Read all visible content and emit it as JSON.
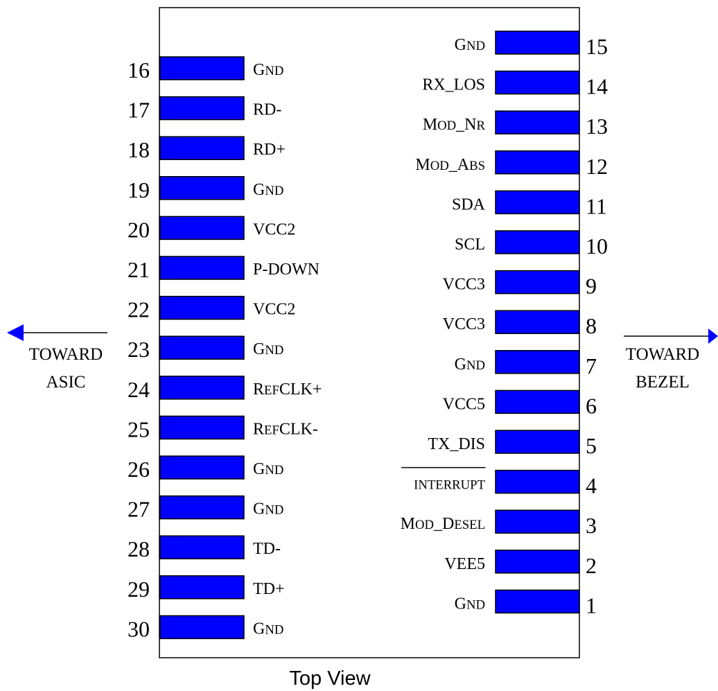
{
  "colors": {
    "pad": "#0000ff",
    "outline": "#000000",
    "arrow": "#0000ff",
    "background": "#ffffff"
  },
  "caption": "Top View",
  "left_direction": {
    "line1": "TOWARD",
    "line2": "ASIC"
  },
  "right_direction": {
    "line1": "TOWARD",
    "line2": "BEZEL"
  },
  "left_pins": [
    {
      "number": "16",
      "parts": [
        [
          "G",
          false
        ],
        [
          "ND",
          true
        ]
      ]
    },
    {
      "number": "17",
      "parts": [
        [
          "RD-",
          false
        ]
      ]
    },
    {
      "number": "18",
      "parts": [
        [
          "RD+",
          false
        ]
      ]
    },
    {
      "number": "19",
      "parts": [
        [
          "G",
          false
        ],
        [
          "ND",
          true
        ]
      ]
    },
    {
      "number": "20",
      "parts": [
        [
          "VCC2",
          false
        ]
      ]
    },
    {
      "number": "21",
      "parts": [
        [
          "P-DOWN",
          false
        ]
      ]
    },
    {
      "number": "22",
      "parts": [
        [
          "VCC2",
          false
        ]
      ]
    },
    {
      "number": "23",
      "parts": [
        [
          "G",
          false
        ],
        [
          "ND",
          true
        ]
      ]
    },
    {
      "number": "24",
      "parts": [
        [
          "R",
          false
        ],
        [
          "EF",
          true
        ],
        [
          "CLK+",
          false
        ]
      ]
    },
    {
      "number": "25",
      "parts": [
        [
          "R",
          false
        ],
        [
          "EF",
          true
        ],
        [
          "CLK-",
          false
        ]
      ]
    },
    {
      "number": "26",
      "parts": [
        [
          "G",
          false
        ],
        [
          "ND",
          true
        ]
      ]
    },
    {
      "number": "27",
      "parts": [
        [
          "G",
          false
        ],
        [
          "ND",
          true
        ]
      ]
    },
    {
      "number": "28",
      "parts": [
        [
          "TD-",
          false
        ]
      ]
    },
    {
      "number": "29",
      "parts": [
        [
          "TD+",
          false
        ]
      ]
    },
    {
      "number": "30",
      "parts": [
        [
          "G",
          false
        ],
        [
          "ND",
          true
        ]
      ]
    }
  ],
  "right_pins": [
    {
      "number": "15",
      "parts": [
        [
          "G",
          false
        ],
        [
          "ND",
          true
        ]
      ]
    },
    {
      "number": "14",
      "parts": [
        [
          "RX_LOS",
          false
        ]
      ]
    },
    {
      "number": "13",
      "parts": [
        [
          "M",
          false
        ],
        [
          "OD",
          true
        ],
        [
          "_N",
          false
        ],
        [
          "R",
          true
        ]
      ]
    },
    {
      "number": "12",
      "parts": [
        [
          "M",
          false
        ],
        [
          "OD",
          true
        ],
        [
          "_A",
          false
        ],
        [
          "BS",
          true
        ]
      ]
    },
    {
      "number": "11",
      "parts": [
        [
          "SDA",
          false
        ]
      ]
    },
    {
      "number": "10",
      "parts": [
        [
          "SCL",
          false
        ]
      ]
    },
    {
      "number": "9",
      "parts": [
        [
          "VCC3",
          false
        ]
      ]
    },
    {
      "number": "8",
      "parts": [
        [
          "VCC3",
          false
        ]
      ]
    },
    {
      "number": "7",
      "parts": [
        [
          "G",
          false
        ],
        [
          "ND",
          true
        ]
      ]
    },
    {
      "number": "6",
      "parts": [
        [
          "VCC5",
          false
        ]
      ]
    },
    {
      "number": "5",
      "parts": [
        [
          "TX_DIS",
          false
        ]
      ]
    },
    {
      "number": "4",
      "parts": [
        [
          "INTERRUPT",
          true
        ]
      ],
      "overline": true
    },
    {
      "number": "3",
      "parts": [
        [
          "M",
          false
        ],
        [
          "OD",
          true
        ],
        [
          "_D",
          false
        ],
        [
          "ESEL",
          true
        ]
      ]
    },
    {
      "number": "2",
      "parts": [
        [
          "VEE5",
          false
        ]
      ]
    },
    {
      "number": "1",
      "parts": [
        [
          "G",
          false
        ],
        [
          "ND",
          true
        ]
      ]
    }
  ]
}
